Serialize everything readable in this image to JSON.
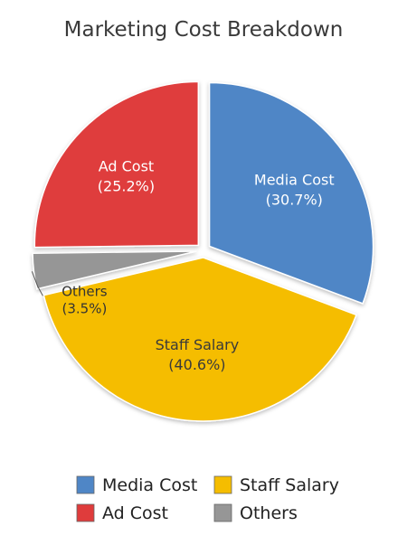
{
  "chart_data": {
    "type": "pie",
    "title": "Marketing Cost Breakdown",
    "slices": [
      {
        "label": "Media Cost",
        "value": 30.7,
        "value_label": "(30.7%)",
        "color": "#4f86c6"
      },
      {
        "label": "Staff Salary",
        "value": 40.6,
        "value_label": "(40.6%)",
        "color": "#f5bd00"
      },
      {
        "label": "Others",
        "value": 3.5,
        "value_label": "(3.5%)",
        "color": "#969696"
      },
      {
        "label": "Ad Cost",
        "value": 25.2,
        "value_label": "(25.2%)",
        "color": "#df3c3c"
      }
    ],
    "exploded": true,
    "start_angle": "12 o'clock, clockwise",
    "legend": {
      "placement": "bottom",
      "entries": [
        "Media Cost",
        "Staff Salary",
        "Ad Cost",
        "Others"
      ]
    },
    "text_colors": {
      "Media Cost": "#ffffff",
      "Staff Salary": "#3a3a3a",
      "Ad Cost": "#ffffff",
      "Others": "#333333"
    }
  }
}
